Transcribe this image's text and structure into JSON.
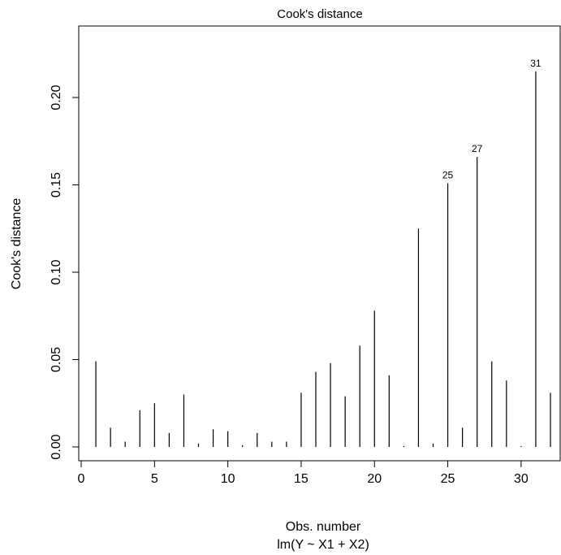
{
  "chart_data": {
    "type": "bar",
    "title": "Cook's distance",
    "xlabel": "Obs. number",
    "sublabel": "lm(Y ~ X1 + X2)",
    "ylabel": "Cook's distance",
    "x": [
      1,
      2,
      3,
      4,
      5,
      6,
      7,
      8,
      9,
      10,
      11,
      12,
      13,
      14,
      15,
      16,
      17,
      18,
      19,
      20,
      21,
      22,
      23,
      24,
      25,
      26,
      27,
      28,
      29,
      30,
      31,
      32
    ],
    "values": [
      0.049,
      0.011,
      0.003,
      0.021,
      0.025,
      0.008,
      0.03,
      0.002,
      0.01,
      0.009,
      0.001,
      0.008,
      0.003,
      0.003,
      0.031,
      0.043,
      0.048,
      0.029,
      0.058,
      0.078,
      0.041,
      0.0005,
      0.125,
      0.002,
      0.151,
      0.011,
      0.166,
      0.049,
      0.038,
      0.0005,
      0.215,
      0.031
    ],
    "xlim": [
      0,
      32
    ],
    "ylim": [
      0,
      0.23
    ],
    "xticks": [
      0,
      5,
      10,
      15,
      20,
      25,
      30
    ],
    "xtick_labels": [
      "0",
      "5",
      "10",
      "15",
      "20",
      "25",
      "30"
    ],
    "yticks": [
      0,
      0.05,
      0.1,
      0.15,
      0.2
    ],
    "ytick_labels": [
      "0.00",
      "0.05",
      "0.10",
      "0.15",
      "0.20"
    ],
    "annotations": [
      {
        "x": 25,
        "label": "25"
      },
      {
        "x": 27,
        "label": "27"
      },
      {
        "x": 31,
        "label": "31"
      }
    ],
    "grid": false,
    "colors": {
      "bar": "#000000",
      "axis": "#000000",
      "background": "#ffffff"
    }
  }
}
